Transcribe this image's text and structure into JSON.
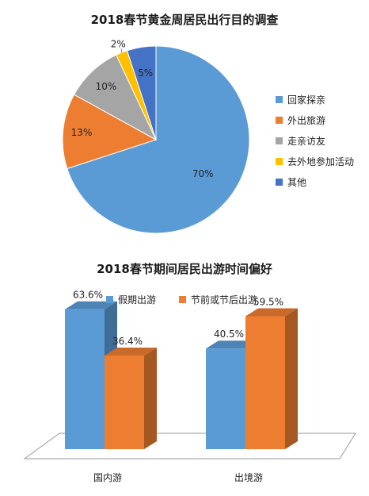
{
  "chart_data": [
    {
      "type": "pie",
      "title": "2018春节黄金周居民出行目的调查",
      "slices": [
        {
          "name": "回家探亲",
          "value": 70,
          "label": "70%",
          "color": "#5B9BD5"
        },
        {
          "name": "外出旅游",
          "value": 13,
          "label": "13%",
          "color": "#ED7D31"
        },
        {
          "name": "走亲访友",
          "value": 10,
          "label": "10%",
          "color": "#A5A5A5"
        },
        {
          "name": "去外地参加活动",
          "value": 2,
          "label": "2%",
          "color": "#FFC000"
        },
        {
          "name": "其他",
          "value": 5,
          "label": "5%",
          "color": "#4472C4"
        }
      ],
      "legend": "right"
    },
    {
      "type": "bar",
      "title": "2018春节期间居民出游时间偏好",
      "style": "3d-clustered",
      "categories": [
        "国内游",
        "出境游"
      ],
      "series": [
        {
          "name": "假期出游",
          "values": [
            63.6,
            40.5
          ],
          "labels": [
            "63.6%",
            "40.5%"
          ],
          "color": "#5B9BD5"
        },
        {
          "name": "节前或节后出游",
          "values": [
            36.4,
            59.5
          ],
          "labels": [
            "36.4%",
            "59.5%"
          ],
          "color": "#ED7D31"
        }
      ],
      "legend": "top",
      "ylim": [
        0,
        70
      ]
    }
  ]
}
